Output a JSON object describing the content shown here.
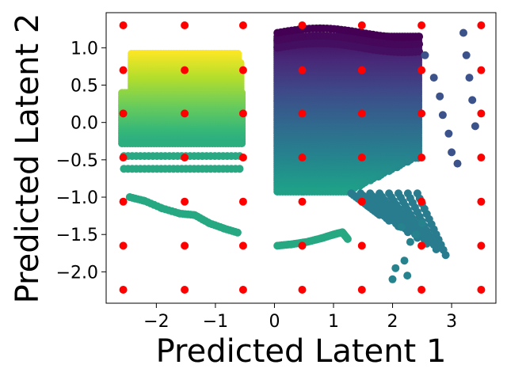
{
  "chart_data": {
    "type": "scatter",
    "title": "",
    "xlabel": "Predicted Latent 1",
    "ylabel": "Predicted Latent 2",
    "xlim": [
      -2.85,
      3.75
    ],
    "ylim": [
      -2.42,
      1.47
    ],
    "xticks": [
      -2,
      -1,
      0,
      1,
      2,
      3
    ],
    "yticks": [
      -2.0,
      -1.5,
      -1.0,
      -0.5,
      0.0,
      0.5,
      1.0
    ],
    "xtick_labels": [
      "−2",
      "−1",
      "0",
      "1",
      "2",
      "3"
    ],
    "ytick_labels": [
      "−2.0",
      "−1.5",
      "−1.0",
      "−0.5",
      "0.0",
      "0.5",
      "1.0"
    ],
    "grid": false,
    "colormap": "viridis",
    "series": [
      {
        "role": "grid-points",
        "color": "#ff0000",
        "x": [
          -2.56,
          -1.52,
          -0.53,
          0.47,
          1.48,
          2.49,
          3.5
        ],
        "y": [
          1.3,
          0.7,
          0.12,
          -0.47,
          -1.06,
          -1.65,
          -2.24
        ]
      },
      {
        "role": "latent-cluster-left",
        "x": [
          -2.6,
          -0.55
        ],
        "y": [
          -0.3,
          0.92
        ],
        "color_low": "#22a884",
        "color_high": "#fde725"
      },
      {
        "role": "latent-cluster-right",
        "x": [
          0.05,
          2.45
        ],
        "y": [
          -0.95,
          1.15
        ],
        "color_low": "#21918c",
        "color_high": "#440154"
      },
      {
        "role": "left-lower-curve",
        "color": "#26a883",
        "x": [
          -2.45,
          -2.2,
          -1.9,
          -1.6,
          -1.35,
          -1.1,
          -0.85,
          -0.6
        ],
        "y": [
          -1.0,
          -1.05,
          -1.15,
          -1.22,
          -1.24,
          -1.35,
          -1.42,
          -1.48
        ]
      },
      {
        "role": "bottom-curve",
        "color": "#26a883",
        "x": [
          0.05,
          0.3,
          0.55,
          0.8,
          1.0,
          1.15,
          1.25
        ],
        "y": [
          -1.65,
          -1.63,
          -1.6,
          -1.55,
          -1.5,
          -1.47,
          -1.57
        ]
      },
      {
        "role": "right-arcs",
        "color": "#3b528b",
        "x": [
          2.55,
          2.7,
          2.8,
          2.85,
          2.95,
          3.0,
          3.1,
          3.2,
          3.25,
          3.3,
          3.35,
          3.4
        ],
        "y": [
          0.9,
          0.6,
          0.35,
          0.1,
          -0.15,
          -0.4,
          -0.55,
          1.2,
          0.9,
          0.6,
          0.3,
          -0.05
        ]
      }
    ]
  }
}
